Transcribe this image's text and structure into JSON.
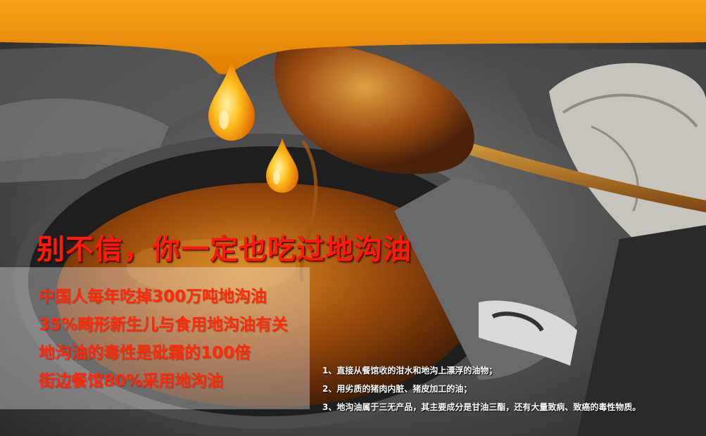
{
  "headline": "别不信，你一定也吃过地沟油",
  "facts": [
    "中国人每年吃掉300万吨地沟油",
    "35%畸形新生儿与食用地沟油有关",
    "地沟油的毒性是砒霜的100倍",
    "街边餐馆80%采用地沟油"
  ],
  "reasons": [
    "1、直接从餐馆收的泔水和地沟上漂浮的油物；",
    "2、用劣质的猪肉内脏、猪皮加工的油；",
    "3、地沟油属于三无产品，其主要成分是甘油三酯，还有大量致病、致癌的毒性物质。"
  ],
  "colors": {
    "headline": "#ff1a0a",
    "fact_text": "#ff2a0a",
    "reason_text": "#ffffff",
    "oil_band": "#f08a00",
    "panel": "#ebebeb"
  }
}
